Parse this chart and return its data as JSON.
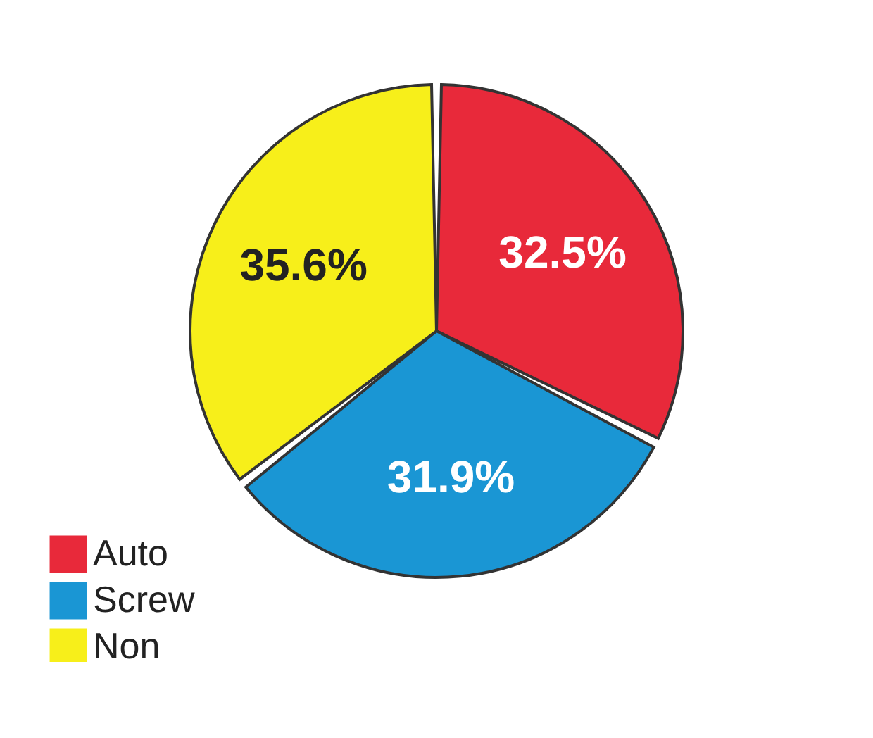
{
  "chart_data": {
    "type": "pie",
    "categories": [
      "Auto",
      "Screw",
      "Non"
    ],
    "values": [
      32.5,
      31.9,
      35.6
    ],
    "colors": [
      "#e8293a",
      "#1a96d4",
      "#f7ef1a"
    ],
    "value_labels": [
      "32.5%",
      "31.9%",
      "35.6%"
    ],
    "legend": "bottom left"
  }
}
